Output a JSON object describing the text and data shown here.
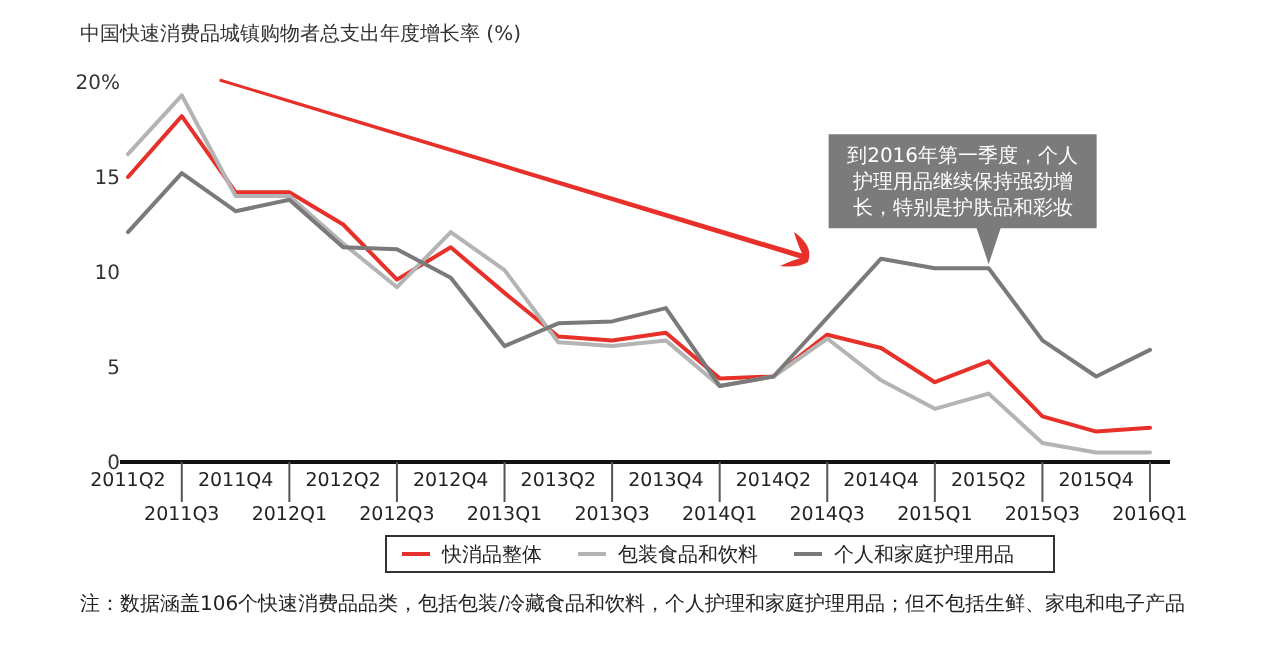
{
  "chart_data": {
    "type": "line",
    "title": "中国快速消费品城镇购物者总支出年度增长率 (%)",
    "categories": [
      "2011Q2",
      "2011Q3",
      "2011Q4",
      "2012Q1",
      "2012Q2",
      "2012Q3",
      "2012Q4",
      "2013Q1",
      "2013Q2",
      "2013Q3",
      "2013Q4",
      "2014Q1",
      "2014Q2",
      "2014Q3",
      "2014Q4",
      "2015Q1",
      "2015Q2",
      "2015Q3",
      "2015Q4",
      "2016Q1"
    ],
    "series": [
      {
        "name": "快消品整体",
        "color": "#e8302a",
        "values": [
          15.0,
          18.2,
          14.2,
          14.2,
          12.5,
          9.6,
          11.3,
          8.9,
          6.6,
          6.4,
          6.8,
          4.4,
          4.5,
          6.7,
          6.0,
          4.2,
          5.3,
          2.4,
          1.6,
          1.8
        ]
      },
      {
        "name": "包装食品和饮料",
        "color": "#b4b4b4",
        "values": [
          16.2,
          19.3,
          14.0,
          14.0,
          11.5,
          9.2,
          12.1,
          10.1,
          6.3,
          6.1,
          6.4,
          4.0,
          4.5,
          6.5,
          4.3,
          2.8,
          3.6,
          1.0,
          0.5,
          0.5
        ]
      },
      {
        "name": "个人和家庭护理用品",
        "color": "#7a7a7a",
        "values": [
          12.1,
          15.2,
          13.2,
          13.8,
          11.3,
          11.2,
          9.7,
          6.1,
          7.3,
          7.4,
          8.1,
          4.0,
          4.5,
          7.6,
          10.7,
          10.2,
          10.2,
          6.4,
          4.5,
          5.9
        ]
      }
    ],
    "ylim": [
      0,
      20
    ],
    "yticks": [
      0,
      5,
      10,
      15,
      {
        "value": 20,
        "label": "20%"
      }
    ],
    "legend": "bottom",
    "marker": "none",
    "line_style": "solid",
    "annotations": [
      {
        "text": "到2016年第一季度，个人护理用品继续保持强劲增长，特别是护肤品和彩妆",
        "x": "2015Q2",
        "y": 10.2
      },
      "注：数据涵盖106个快速消费品品类，包括包装/冷藏食品和饮料，个人护理和家庭护理用品；但不包括生鲜、家电和电子产品"
    ]
  }
}
